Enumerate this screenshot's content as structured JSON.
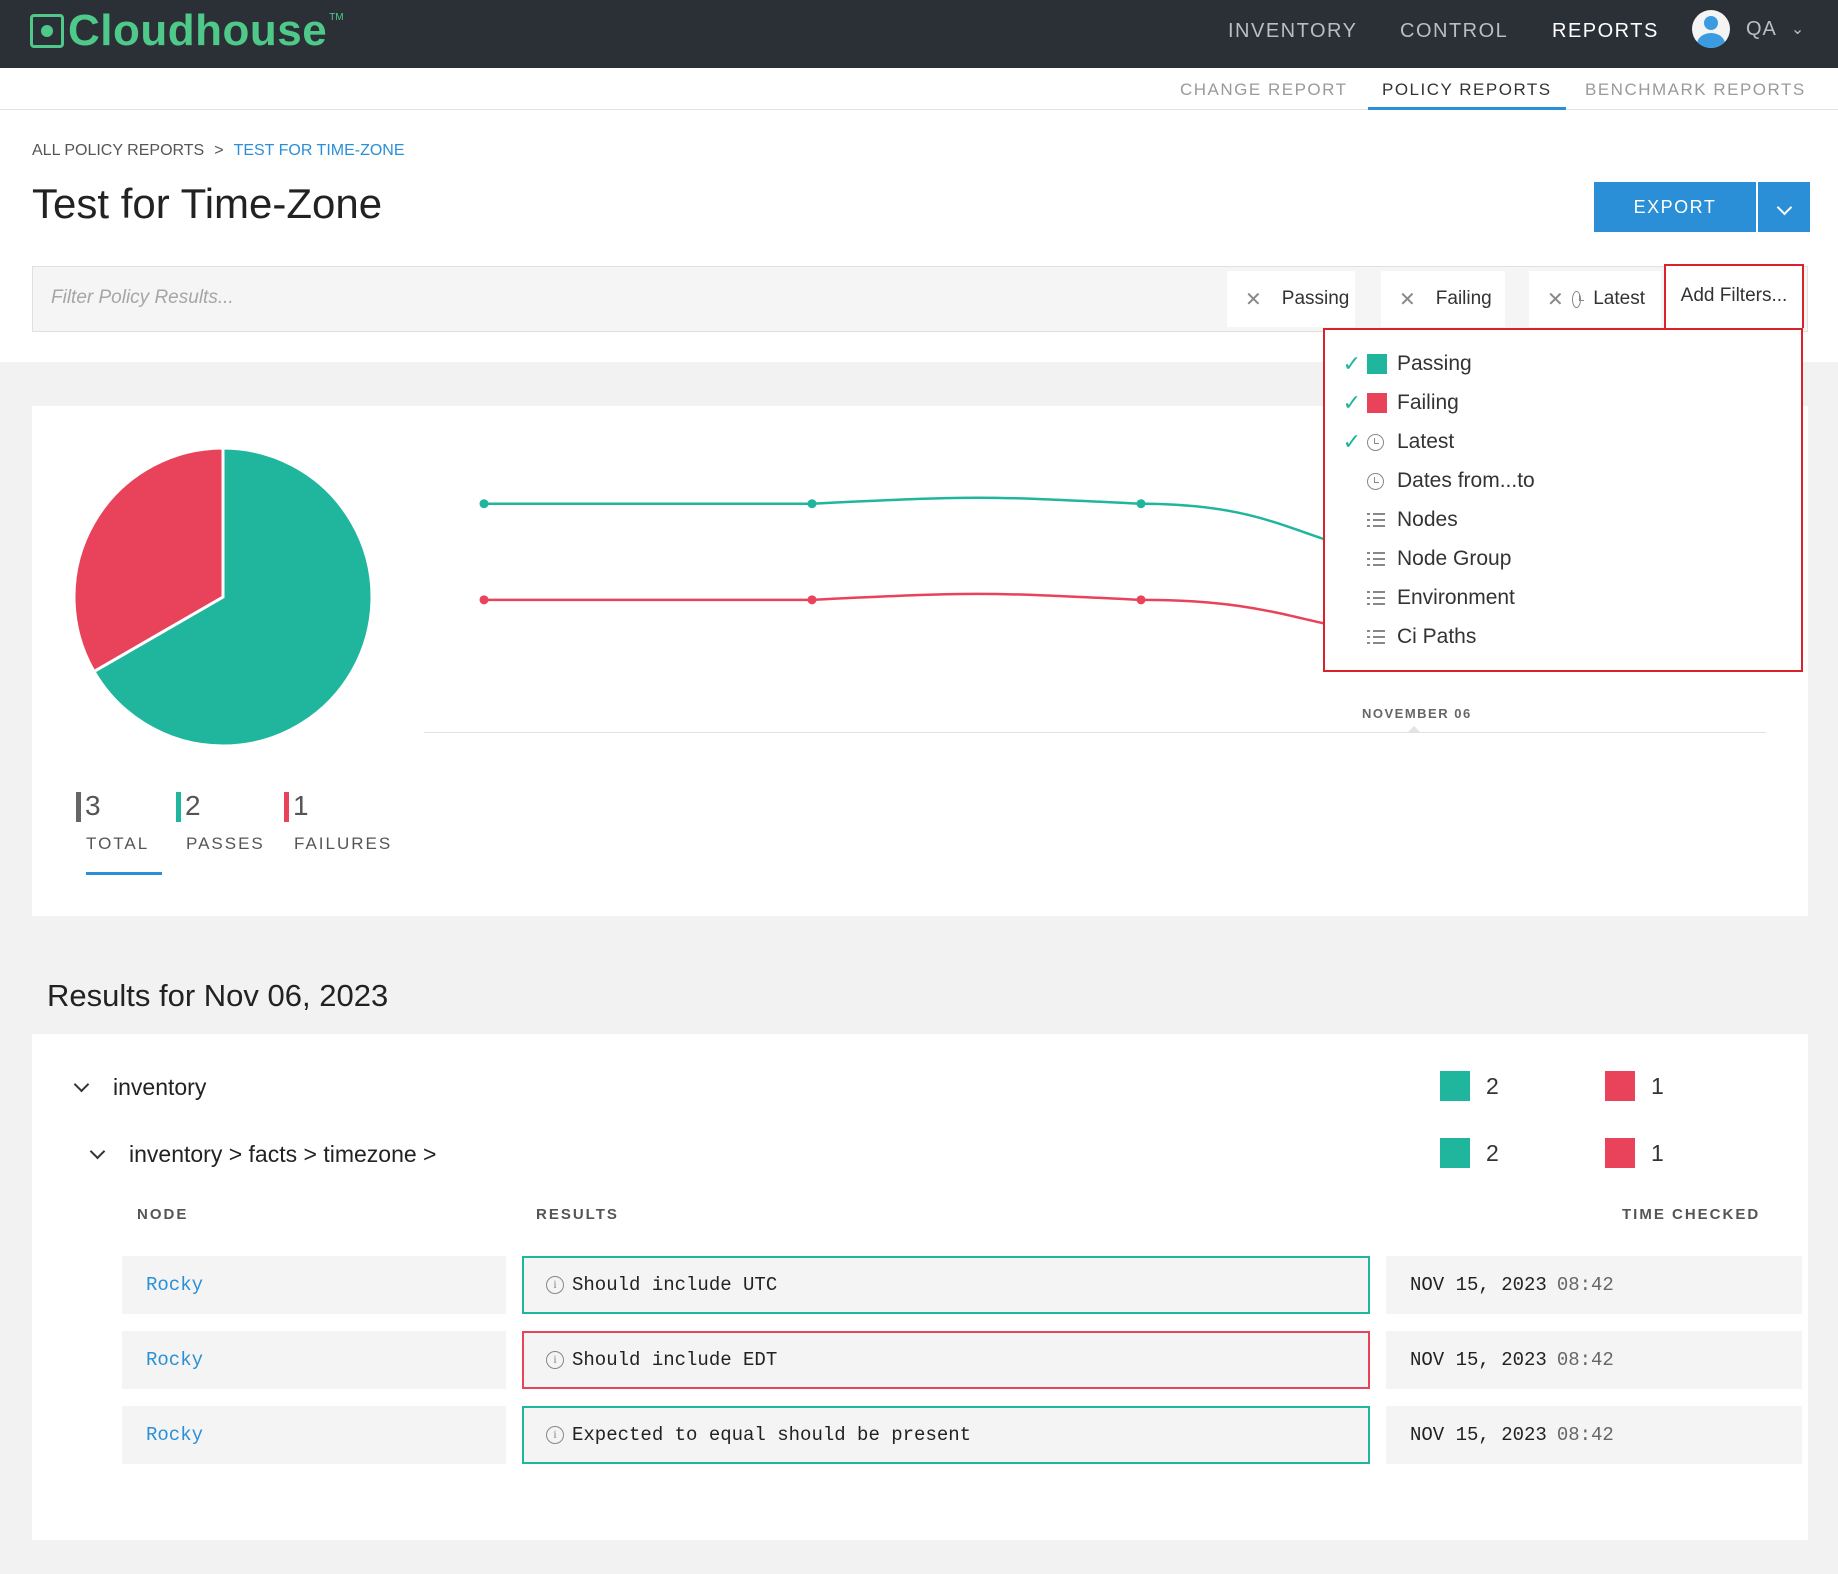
{
  "app": {
    "logo_text": "Cloudhouse",
    "logo_tm": "TM"
  },
  "topnav": {
    "items": [
      {
        "label": "INVENTORY"
      },
      {
        "label": "CONTROL"
      },
      {
        "label": "REPORTS"
      }
    ],
    "user": {
      "name": "QA"
    }
  },
  "subnav": {
    "items": [
      {
        "label": "CHANGE REPORT"
      },
      {
        "label": "POLICY REPORTS"
      },
      {
        "label": "BENCHMARK REPORTS"
      }
    ]
  },
  "breadcrumb": {
    "root": "ALL POLICY REPORTS",
    "separator": ">",
    "current": "TEST FOR TIME-ZONE"
  },
  "page_title": "Test for Time-Zone",
  "export": {
    "label": "EXPORT"
  },
  "filter": {
    "placeholder": "Filter Policy Results...",
    "chips": [
      {
        "label": "Passing",
        "icon": "green-square"
      },
      {
        "label": "Failing",
        "icon": "red-square"
      },
      {
        "label": "Latest",
        "icon": "clock-icon"
      }
    ],
    "add_filters_label": "Add Filters...",
    "dropdown_items": [
      {
        "label": "Passing",
        "checked": true,
        "icon": "green-square"
      },
      {
        "label": "Failing",
        "checked": true,
        "icon": "red-square"
      },
      {
        "label": "Latest",
        "checked": true,
        "icon": "clock-icon"
      },
      {
        "label": "Dates from...to",
        "checked": false,
        "icon": "clock-icon"
      },
      {
        "label": "Nodes",
        "checked": false,
        "icon": "list-icon"
      },
      {
        "label": "Node Group",
        "checked": false,
        "icon": "list-icon"
      },
      {
        "label": "Environment",
        "checked": false,
        "icon": "list-icon"
      },
      {
        "label": "Ci Paths",
        "checked": false,
        "icon": "list-icon"
      }
    ]
  },
  "stats": {
    "total": {
      "value": "3",
      "label": "TOTAL"
    },
    "passes": {
      "value": "2",
      "label": "PASSES"
    },
    "failures": {
      "value": "1",
      "label": "FAILURES"
    }
  },
  "chart_data": [
    {
      "type": "pie",
      "categories": [
        "Passes",
        "Failures"
      ],
      "values": [
        2,
        1
      ],
      "colors": [
        "#20b59d",
        "#e8435a"
      ]
    },
    {
      "type": "line",
      "x": [
        "",
        "",
        "",
        "NOVEMBER 06"
      ],
      "xlabel": "NOVEMBER 06",
      "series": [
        {
          "values": [
            2,
            2,
            2,
            1.4
          ],
          "color": "#20b59d"
        },
        {
          "values": [
            1,
            1,
            1,
            0.6
          ],
          "color": "#e8435a"
        }
      ],
      "ylim": [
        0,
        2.6
      ],
      "grid": false
    }
  ],
  "results": {
    "title": "Results for Nov 06, 2023",
    "groups": [
      {
        "label": "inventory",
        "pass_count": "2",
        "fail_count": "1"
      },
      {
        "label": "inventory > facts > timezone >",
        "pass_count": "2",
        "fail_count": "1"
      }
    ],
    "columns": {
      "node": "NODE",
      "results": "RESULTS",
      "time": "TIME CHECKED"
    },
    "rows": [
      {
        "node": "Rocky",
        "result": "Should include UTC",
        "status": "pass",
        "date": "NOV 15, 2023",
        "time": "08:42"
      },
      {
        "node": "Rocky",
        "result": "Should include EDT",
        "status": "fail",
        "date": "NOV 15, 2023",
        "time": "08:42"
      },
      {
        "node": "Rocky",
        "result": "Expected to equal should be present",
        "status": "pass",
        "date": "NOV 15, 2023",
        "time": "08:42"
      }
    ]
  },
  "colors": {
    "pass": "#20b59d",
    "fail": "#e8435a",
    "accent": "#2a8fd6",
    "nav_bg": "#2b3036",
    "logo": "#4fc98a"
  }
}
